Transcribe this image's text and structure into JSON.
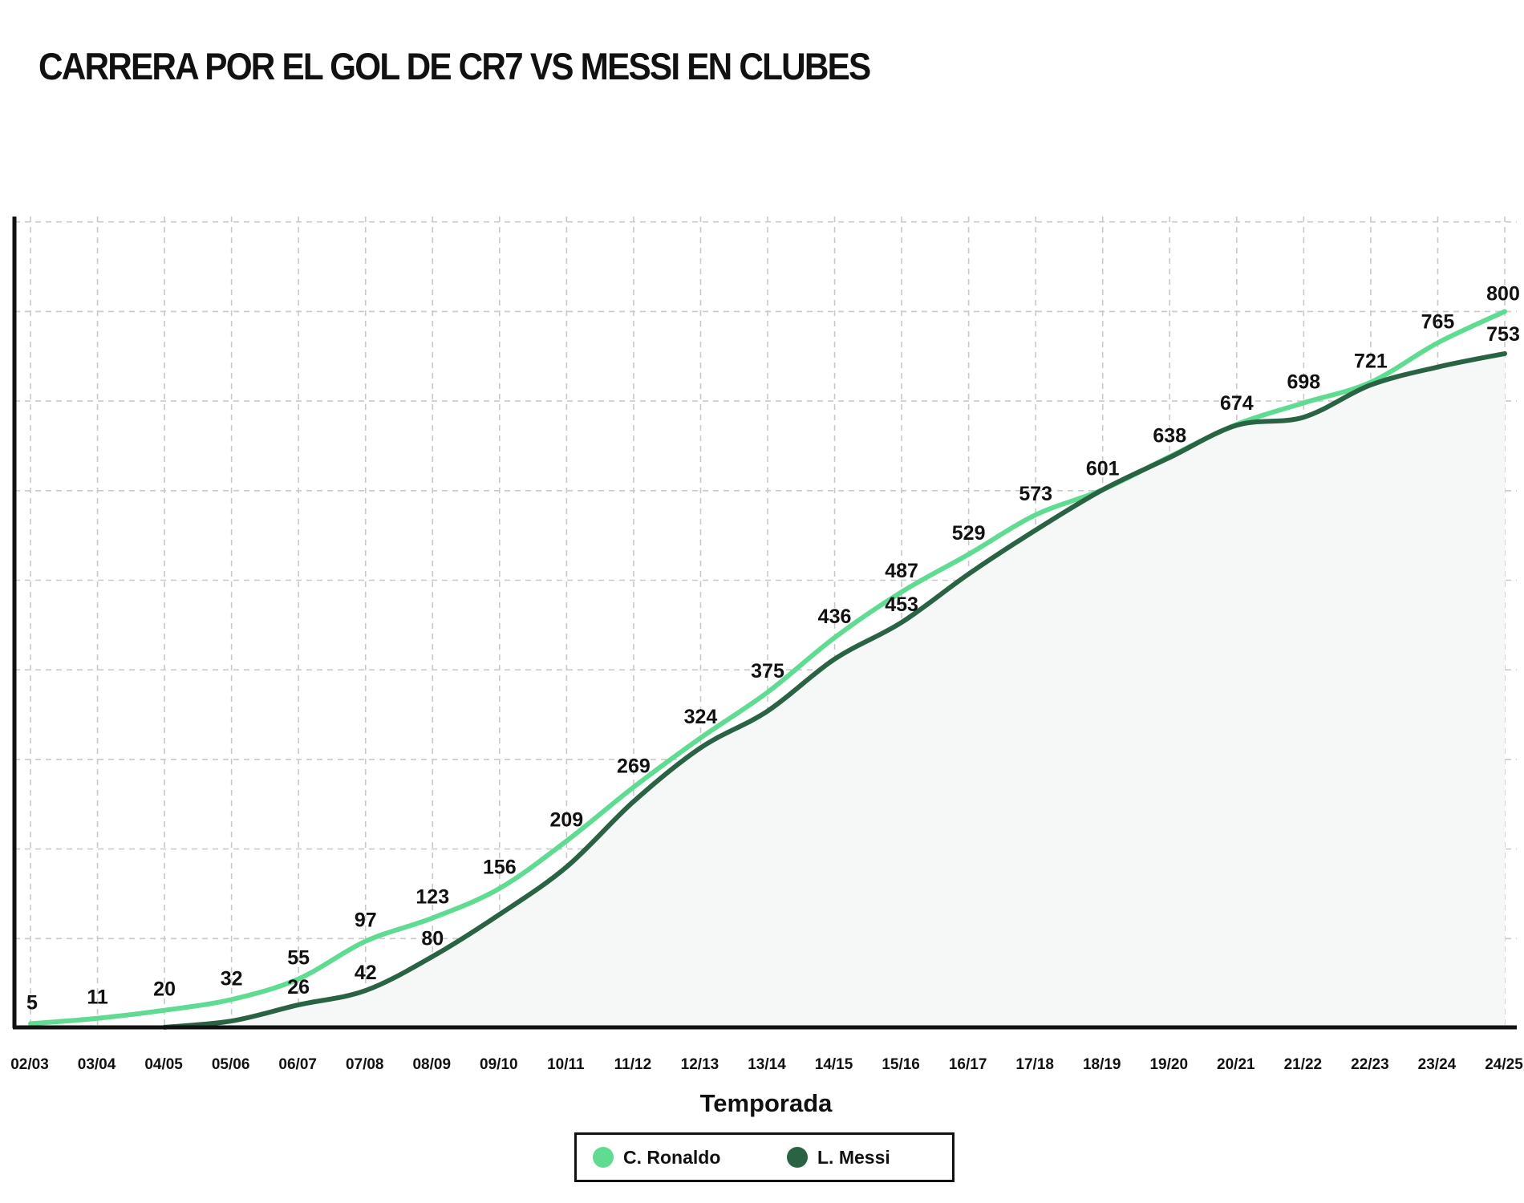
{
  "chart_data": {
    "type": "line",
    "title": "CARRERA POR EL GOL DE CR7 VS MESSI EN CLUBES",
    "xlabel": "Temporada",
    "ylabel": "",
    "ylim": [
      0,
      900
    ],
    "grid": true,
    "legend_position": "bottom-center",
    "categories": [
      "02/03",
      "03/04",
      "04/05",
      "05/06",
      "06/07",
      "07/08",
      "08/09",
      "09/10",
      "10/11",
      "11/12",
      "12/13",
      "13/14",
      "14/15",
      "15/16",
      "16/17",
      "17/18",
      "18/19",
      "19/20",
      "20/21",
      "21/22",
      "22/23",
      "23/24",
      "24/25"
    ],
    "series": [
      {
        "name": "C. Ronaldo",
        "color": "#5fdc92",
        "values": [
          5,
          11,
          20,
          32,
          55,
          97,
          123,
          156,
          209,
          269,
          324,
          375,
          436,
          487,
          529,
          573,
          601,
          638,
          674,
          698,
          721,
          765,
          800
        ],
        "labels": [
          "5",
          "11",
          "20",
          "32",
          "55",
          "97",
          "123",
          "156",
          "209",
          "269",
          "324",
          "375",
          "436",
          "487",
          "529",
          "573",
          "601",
          "638",
          "674",
          "698",
          "721",
          "765",
          "800"
        ]
      },
      {
        "name": "L. Messi",
        "color": "#2a6244",
        "values": [
          null,
          null,
          1,
          8,
          26,
          42,
          80,
          127,
          180,
          253,
          313,
          354,
          412,
          453,
          507,
          556,
          601,
          637,
          673,
          682,
          718,
          738,
          753
        ],
        "labels": [
          null,
          null,
          null,
          null,
          "26",
          "42",
          "80",
          null,
          null,
          null,
          null,
          null,
          null,
          "453",
          null,
          null,
          null,
          null,
          null,
          null,
          null,
          null,
          "753"
        ]
      }
    ]
  }
}
